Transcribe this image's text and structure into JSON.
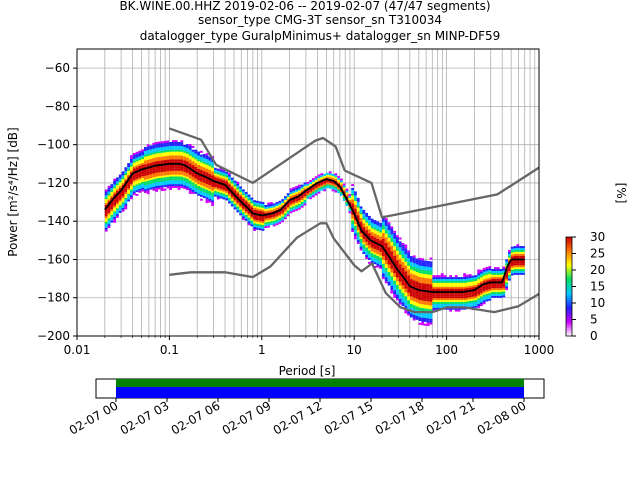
{
  "title": {
    "line1": "BK.WINE.00.HHZ   2019-02-06 -- 2019-02-07  (47/47 segments)",
    "line2": "sensor_type CMG-3T sensor_sn T310034",
    "line3": "datalogger_type GuralpMinimus+ datalogger_sn MINP-DF59"
  },
  "chart_data": [
    {
      "type": "heatmap",
      "subtype": "ppsd",
      "xscale": "log",
      "xlabel": "Period [s]",
      "ylabel": "Power [m²/s⁴/Hz] [dB]",
      "xlim": [
        0.01,
        1000
      ],
      "ylim": [
        -200,
        -50
      ],
      "xticks": [
        0.01,
        0.1,
        1,
        10,
        100,
        1000
      ],
      "xtick_labels": [
        "0.01",
        "0.1",
        "1",
        "10",
        "100",
        "1000"
      ],
      "yticks": [
        -200,
        -180,
        -160,
        -140,
        -120,
        -100,
        -80,
        -60
      ],
      "ytick_labels": [
        "−200",
        "−180",
        "−160",
        "−140",
        "−120",
        "−100",
        "−80",
        "−60"
      ],
      "grid": true,
      "colorbar": {
        "label": "[%]",
        "min": 0,
        "max": 30,
        "ticks": [
          0,
          5,
          10,
          15,
          20,
          25,
          30
        ],
        "tick_labels": [
          "0",
          "5",
          "10",
          "15",
          "20",
          "25",
          "30"
        ],
        "colormap": [
          "#ffffff",
          "#cc00ff",
          "#2222ff",
          "#00c8ff",
          "#00dd66",
          "#ffff00",
          "#ff7700",
          "#cc0000"
        ]
      },
      "series": [
        {
          "kind": "mode",
          "color": "#000000",
          "points": [
            [
              0.02,
              -134
            ],
            [
              0.025,
              -128
            ],
            [
              0.03,
              -124
            ],
            [
              0.04,
              -115
            ],
            [
              0.05,
              -113
            ],
            [
              0.07,
              -111
            ],
            [
              0.1,
              -110
            ],
            [
              0.13,
              -110
            ],
            [
              0.15,
              -111
            ],
            [
              0.2,
              -115
            ],
            [
              0.25,
              -117
            ],
            [
              0.3,
              -119
            ],
            [
              0.4,
              -121
            ],
            [
              0.5,
              -126
            ],
            [
              0.6,
              -130
            ],
            [
              0.7,
              -133
            ],
            [
              0.8,
              -136
            ],
            [
              1.0,
              -137
            ],
            [
              1.3,
              -136
            ],
            [
              1.6,
              -134
            ],
            [
              2.0,
              -129
            ],
            [
              2.5,
              -127
            ],
            [
              3.0,
              -124
            ],
            [
              4.0,
              -120
            ],
            [
              5.0,
              -118
            ],
            [
              6.0,
              -119
            ],
            [
              7.0,
              -122
            ],
            [
              8.0,
              -127
            ],
            [
              10.0,
              -136
            ],
            [
              12.0,
              -145
            ],
            [
              15.0,
              -150
            ],
            [
              20.0,
              -153
            ],
            [
              25.0,
              -160
            ],
            [
              30.0,
              -166
            ],
            [
              35.0,
              -170
            ],
            [
              40.0,
              -174
            ],
            [
              50.0,
              -176
            ],
            [
              70.0,
              -177
            ],
            [
              100.0,
              -177
            ],
            [
              150.0,
              -177
            ],
            [
              200.0,
              -176
            ],
            [
              250.0,
              -173
            ],
            [
              300.0,
              -172
            ],
            [
              400.0,
              -172
            ],
            [
              450.0,
              -164
            ],
            [
              500.0,
              -160
            ],
            [
              700.0,
              -160
            ]
          ]
        },
        {
          "kind": "nhnm",
          "color": "#666666",
          "points": [
            [
              0.1,
              -91.5
            ],
            [
              0.22,
              -97.4
            ],
            [
              0.32,
              -110.5
            ],
            [
              0.8,
              -120
            ],
            [
              3.8,
              -97.9
            ],
            [
              4.6,
              -96.5
            ],
            [
              6.3,
              -101
            ],
            [
              7.9,
              -113.5
            ],
            [
              15.4,
              -120
            ],
            [
              20,
              -138
            ],
            [
              354.8,
              -126
            ],
            [
              1000,
              -112
            ]
          ]
        },
        {
          "kind": "nlnm",
          "color": "#666666",
          "points": [
            [
              0.1,
              -168
            ],
            [
              0.17,
              -166.7
            ],
            [
              0.4,
              -166.7
            ],
            [
              0.8,
              -169.2
            ],
            [
              1.24,
              -163.7
            ],
            [
              2.4,
              -148.6
            ],
            [
              4.3,
              -141.1
            ],
            [
              5.0,
              -141.1
            ],
            [
              6.0,
              -149
            ],
            [
              10.0,
              -163
            ],
            [
              12.0,
              -166.2
            ],
            [
              15.6,
              -162.1
            ],
            [
              21.9,
              -177.5
            ],
            [
              31.6,
              -185
            ],
            [
              45,
              -187.5
            ],
            [
              70,
              -187.5
            ],
            [
              101,
              -185
            ],
            [
              154,
              -185
            ],
            [
              328,
              -187.5
            ],
            [
              600,
              -184.4
            ],
            [
              1000,
              -178
            ]
          ]
        }
      ]
    },
    {
      "type": "timeline",
      "subtype": "data-coverage",
      "xtick_labels": [
        "02-07 00",
        "02-07 03",
        "02-07 06",
        "02-07 09",
        "02-07 12",
        "02-07 15",
        "02-07 18",
        "02-07 21",
        "02-08 00"
      ],
      "coverage": [
        {
          "name": "available",
          "color": "#0000ff",
          "start": "02-07 00",
          "end": "02-08 00"
        },
        {
          "name": "used",
          "color": "#008000",
          "start": "02-07 00",
          "end": "02-08 00"
        }
      ]
    }
  ]
}
